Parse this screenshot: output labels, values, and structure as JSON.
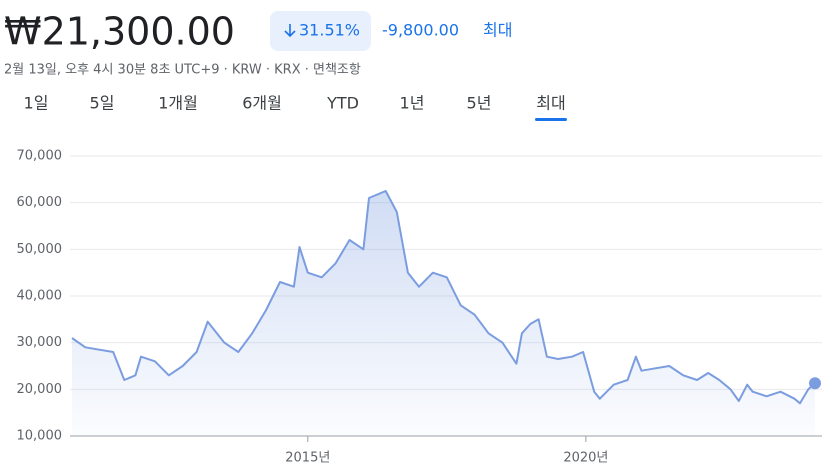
{
  "header": {
    "price": "₩21,300.00",
    "change_percent": "31.51%",
    "change_amount": "-9,800.00",
    "period": "최대",
    "meta": "2월 13일, 오후 4시 30분 8초 UTC+9 · KRW · KRX · 면책조항"
  },
  "tabs": [
    "1일",
    "5일",
    "1개월",
    "6개월",
    "YTD",
    "1년",
    "5년",
    "최대"
  ],
  "active_tab": 7,
  "chart_data": {
    "type": "line",
    "color": "#7b9de0",
    "x": [
      2010.76,
      2011.0,
      2011.25,
      2011.5,
      2011.7,
      2011.9,
      2012.0,
      2012.25,
      2012.5,
      2012.75,
      2013.0,
      2013.2,
      2013.5,
      2013.75,
      2014.0,
      2014.25,
      2014.5,
      2014.75,
      2014.85,
      2015.0,
      2015.25,
      2015.5,
      2015.75,
      2016.0,
      2016.1,
      2016.4,
      2016.6,
      2016.8,
      2017.0,
      2017.25,
      2017.5,
      2017.75,
      2018.0,
      2018.25,
      2018.5,
      2018.75,
      2018.85,
      2019.0,
      2019.15,
      2019.3,
      2019.5,
      2019.75,
      2019.95,
      2020.15,
      2020.25,
      2020.5,
      2020.75,
      2020.9,
      2021.0,
      2021.25,
      2021.5,
      2021.75,
      2022.0,
      2022.2,
      2022.4,
      2022.6,
      2022.75,
      2022.9,
      2023.0,
      2023.25,
      2023.5,
      2023.75,
      2023.85,
      2024.0,
      2024.12
    ],
    "values": [
      31000,
      29000,
      28500,
      28000,
      22000,
      23000,
      27000,
      26000,
      23000,
      25000,
      28000,
      34500,
      30000,
      28000,
      32000,
      37000,
      43000,
      42000,
      50500,
      45000,
      44000,
      47000,
      52000,
      50000,
      61000,
      62500,
      58000,
      45000,
      42000,
      45000,
      44000,
      38000,
      36000,
      32000,
      30000,
      25500,
      32000,
      34000,
      35000,
      27000,
      26500,
      27000,
      28000,
      19500,
      18000,
      21000,
      22000,
      27000,
      24000,
      24500,
      25000,
      23000,
      22000,
      23500,
      22000,
      20000,
      17500,
      21000,
      19500,
      18500,
      19500,
      18000,
      17000,
      20000,
      21300
    ],
    "xlim": [
      2010.76,
      2024.12
    ],
    "xticks": [
      {
        "value": 2015,
        "label": "2015년"
      },
      {
        "value": 2020,
        "label": "2020년"
      }
    ],
    "ylim": [
      10000,
      70000
    ],
    "yticks": [
      {
        "value": 10000,
        "label": "10,000"
      },
      {
        "value": 20000,
        "label": "20,000"
      },
      {
        "value": 30000,
        "label": "30,000"
      },
      {
        "value": 40000,
        "label": "40,000"
      },
      {
        "value": 50000,
        "label": "50,000"
      },
      {
        "value": 60000,
        "label": "60,000"
      },
      {
        "value": 70000,
        "label": "70,000"
      }
    ],
    "grid": true
  }
}
